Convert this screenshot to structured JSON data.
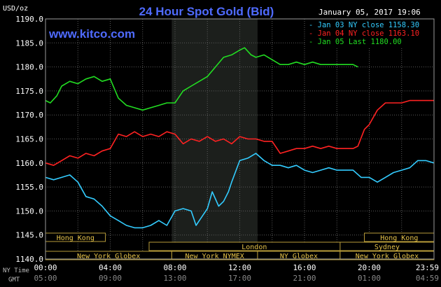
{
  "chart_data": {
    "type": "line",
    "title": "24 Hour Spot Gold (Bid)",
    "watermark": "www.kitco.com",
    "timestamp": "January 05, 2017 19:06",
    "ylabel": "USD/oz",
    "ylim": [
      1140,
      1190
    ],
    "yticks": [
      "1190.0",
      "1185.0",
      "1180.0",
      "1175.0",
      "1170.0",
      "1165.0",
      "1160.0",
      "1155.0",
      "1150.0",
      "1145.0",
      "1140.0"
    ],
    "xlim": [
      0,
      24
    ],
    "xticks_ny": [
      "00:00",
      "04:00",
      "08:00",
      "12:00",
      "16:00",
      "20:00",
      "23:59"
    ],
    "xticks_gmt": [
      "05:00",
      "09:00",
      "13:00",
      "17:00",
      "21:00",
      "01:00",
      "04:59"
    ],
    "x_row_labels": [
      "NY Time",
      "GMT"
    ],
    "grid": true,
    "highlight_band": [
      7.8,
      13.1
    ],
    "legend_position": "top-right",
    "legend": [
      {
        "label": "Jan 03 NY close",
        "value": "1158.30",
        "color": "#33ccff"
      },
      {
        "label": "Jan 04 NY close",
        "value": "1163.10",
        "color": "#ff2222"
      },
      {
        "label": "Jan 05 Last",
        "value": "1180.00",
        "color": "#22dd22"
      }
    ],
    "series": [
      {
        "color": "#33ccff",
        "x": [
          0,
          0.5,
          1,
          1.5,
          2,
          2.5,
          3,
          3.5,
          4,
          4.5,
          5,
          5.5,
          6,
          6.5,
          7,
          7.5,
          8,
          8.5,
          9,
          9.3,
          9.7,
          10,
          10.3,
          10.7,
          11,
          11.3,
          11.5,
          12,
          12.5,
          13,
          13.5,
          14,
          14.5,
          15,
          15.5,
          16,
          16.5,
          17,
          17.5,
          18,
          18.5,
          19,
          19.5,
          20,
          20.5,
          21,
          21.5,
          22,
          22.5,
          23,
          23.5,
          24
        ],
        "values": [
          1157,
          1156.5,
          1157,
          1157.5,
          1156,
          1153,
          1152.5,
          1151,
          1149,
          1148,
          1147,
          1146.5,
          1146.5,
          1147,
          1148,
          1147,
          1150,
          1150.5,
          1150,
          1147,
          1149,
          1150.5,
          1154,
          1151,
          1152,
          1154,
          1156,
          1160.5,
          1161,
          1162,
          1160.5,
          1159.5,
          1159.5,
          1159,
          1159.5,
          1158.5,
          1158,
          1158.5,
          1159,
          1158.5,
          1158.5,
          1158.5,
          1157,
          1157,
          1156,
          1157,
          1158,
          1158.5,
          1159,
          1160.5,
          1160.5,
          1160
        ]
      },
      {
        "color": "#ff2222",
        "x": [
          0,
          0.5,
          1,
          1.5,
          2,
          2.5,
          3,
          3.5,
          4,
          4.5,
          5,
          5.5,
          6,
          6.5,
          7,
          7.5,
          8,
          8.5,
          9,
          9.5,
          10,
          10.5,
          11,
          11.5,
          12,
          12.5,
          13,
          13.5,
          14,
          14.5,
          15,
          15.5,
          16,
          16.5,
          17,
          17.5,
          18,
          18.5,
          19,
          19.3,
          19.7,
          20,
          20.5,
          21,
          21.5,
          22,
          22.5,
          23,
          23.5,
          24
        ],
        "values": [
          1160,
          1159.5,
          1160.5,
          1161.5,
          1161,
          1162,
          1161.5,
          1162.5,
          1163,
          1166,
          1165.5,
          1166.5,
          1165.5,
          1166,
          1165.5,
          1166.5,
          1166,
          1164,
          1165,
          1164.5,
          1165.5,
          1164.5,
          1165,
          1164,
          1165.5,
          1165,
          1165,
          1164.5,
          1164.5,
          1162,
          1162.5,
          1163,
          1163,
          1163.5,
          1163,
          1163.5,
          1163,
          1163,
          1163,
          1163.5,
          1167,
          1168,
          1171,
          1172.5,
          1172.5,
          1172.5,
          1173,
          1173,
          1173,
          1173
        ]
      },
      {
        "color": "#22dd22",
        "x": [
          0,
          0.3,
          0.7,
          1,
          1.5,
          2,
          2.5,
          3,
          3.5,
          4,
          4.5,
          5,
          5.5,
          6,
          6.5,
          7,
          7.5,
          8,
          8.5,
          9,
          9.5,
          10,
          10.5,
          11,
          11.5,
          12,
          12.3,
          12.7,
          13,
          13.5,
          14,
          14.5,
          15,
          15.5,
          16,
          16.5,
          17,
          17.5,
          18,
          18.5,
          19,
          19.3
        ],
        "values": [
          1173,
          1172.5,
          1174,
          1176,
          1177,
          1176.5,
          1177.5,
          1178,
          1177,
          1177.5,
          1173.5,
          1172,
          1171.5,
          1171,
          1171.5,
          1172,
          1172.5,
          1172.5,
          1175,
          1176,
          1177,
          1178,
          1180,
          1182,
          1182.5,
          1183.5,
          1184,
          1182.5,
          1182,
          1182.5,
          1181.5,
          1180.5,
          1180.5,
          1181,
          1180.5,
          1181,
          1180.5,
          1180.5,
          1180.5,
          1180.5,
          1180.5,
          1180
        ]
      }
    ],
    "sessions": [
      {
        "label": "Hong Kong",
        "start": 0,
        "end": 3.7,
        "row": 1
      },
      {
        "label": "London",
        "start": 6.4,
        "end": 19.4,
        "row": 2
      },
      {
        "label": "New York Globex",
        "start": 0,
        "end": 7.8,
        "row": 3
      },
      {
        "label": "New York NYMEX",
        "start": 7.8,
        "end": 13.1,
        "row": 3
      },
      {
        "label": "NY Globex",
        "start": 13.1,
        "end": 18.2,
        "row": 3
      },
      {
        "label": "Hong Kong",
        "start": 19.7,
        "end": 24,
        "row": 1
      },
      {
        "label": "Sydney",
        "start": 18.2,
        "end": 24,
        "row": 2
      },
      {
        "label": "New York Globex",
        "start": 18.2,
        "end": 24,
        "row": 3
      }
    ]
  }
}
